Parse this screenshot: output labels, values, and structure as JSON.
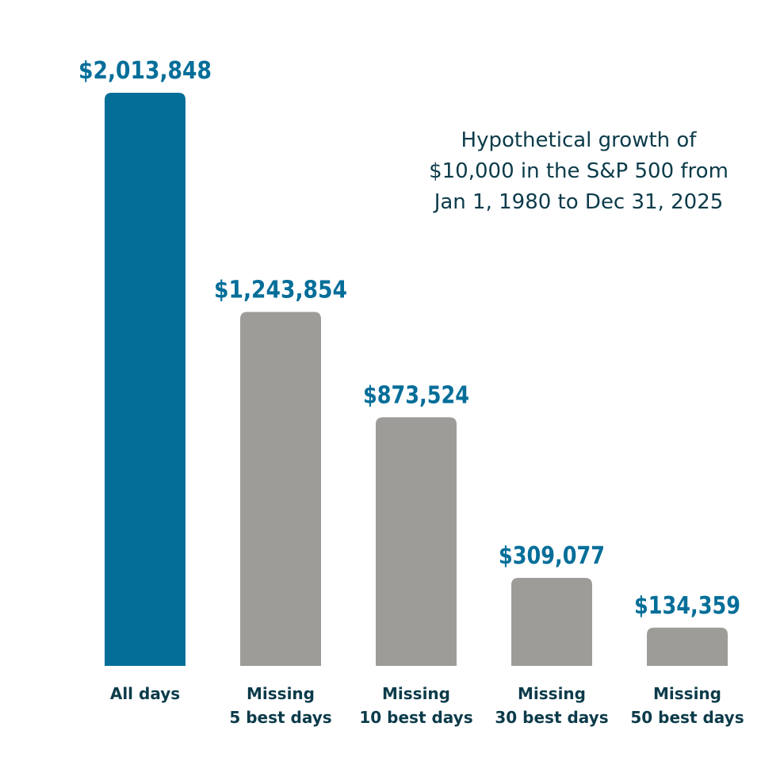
{
  "chart_data": {
    "type": "bar",
    "title_lines": [
      "Hypothetical growth of",
      "$10,000 in the S&P 500 from",
      "Jan 1, 1980 to Dec 31, 2025"
    ],
    "categories": [
      [
        "All days"
      ],
      [
        "Missing",
        "5 best days"
      ],
      [
        "Missing",
        "10 best days"
      ],
      [
        "Missing",
        "30 best days"
      ],
      [
        "Missing",
        "50 best days"
      ]
    ],
    "values": [
      2013848,
      1243854,
      873524,
      309077,
      134359
    ],
    "value_labels": [
      "$2,013,848",
      "$1,243,854",
      "$873,524",
      "$309,077",
      "$134,359"
    ],
    "colors": [
      "#046e99",
      "#9d9c98",
      "#9d9c98",
      "#9d9c98",
      "#9d9c98"
    ],
    "label_color": "#046e99",
    "category_color": "#0c3b4a",
    "ylim": [
      0,
      2013848
    ],
    "xlabel": "",
    "ylabel": "",
    "grid": false
  }
}
